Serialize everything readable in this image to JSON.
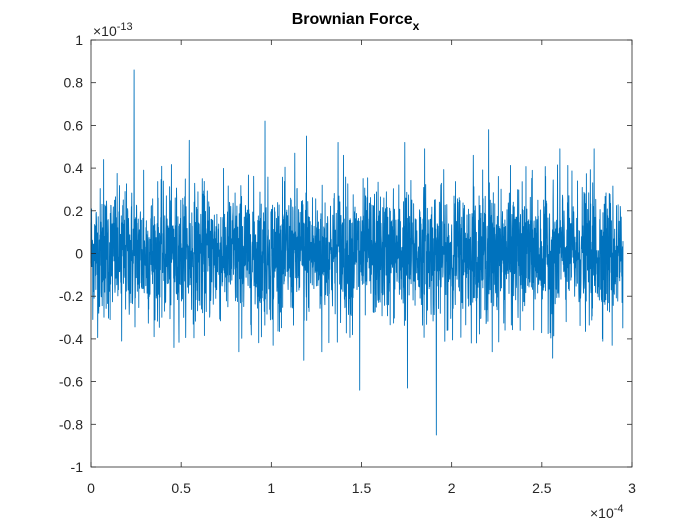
{
  "chart_data": {
    "type": "line",
    "title": "Brownian Force",
    "title_subscript": "x",
    "xlabel": "",
    "ylabel": "",
    "xlim": [
      0,
      0.0003
    ],
    "ylim": [
      -1e-13,
      1e-13
    ],
    "x_exponent_label": "×10",
    "x_exponent": "-4",
    "y_exponent_label": "×10",
    "y_exponent": "-13",
    "x_ticks": [
      0,
      5e-05,
      0.0001,
      0.00015,
      0.0002,
      0.00025,
      0.0003
    ],
    "x_tick_labels": [
      "0",
      "0.5",
      "1",
      "1.5",
      "2",
      "2.5",
      "3"
    ],
    "y_ticks": [
      -1e-13,
      -8e-14,
      -6e-14,
      -4e-14,
      -2e-14,
      0,
      2e-14,
      4e-14,
      6e-14,
      8e-14,
      1e-13
    ],
    "y_tick_labels": [
      "-1",
      "-0.8",
      "-0.6",
      "-0.4",
      "-0.2",
      "0",
      "0.2",
      "0.4",
      "0.6",
      "0.8",
      "1"
    ],
    "grid": false,
    "line_color": "#0072BD",
    "series": [
      {
        "x_start": 0,
        "x_step": 1e-07,
        "num_points": 2951,
        "y_scale": 1e-13,
        "noise_sigma": 0.15,
        "peaks": [
          [
            2.39e-05,
            0.86
          ],
          [
            9.65e-05,
            0.62
          ],
          [
            5.45e-05,
            0.53
          ],
          [
            0.0001195,
            0.55
          ],
          [
            0.000137,
            0.52
          ],
          [
            0.0002205,
            0.58
          ],
          [
            0.000174,
            0.52
          ],
          [
            0.000185,
            0.49
          ],
          [
            0.00026,
            0.49
          ],
          [
            0.00014,
            0.46
          ],
          [
            7e-06,
            0.44
          ],
          [
            1.7e-05,
            0.29
          ],
          [
            2.92e-05,
            0.39
          ],
          [
            0.000113,
            0.47
          ],
          [
            0.000212,
            0.46
          ],
          [
            0.000279,
            0.49
          ],
          [
            0.0001915,
            -0.85
          ],
          [
            0.000149,
            -0.64
          ],
          [
            0.0001755,
            -0.63
          ],
          [
            0.000118,
            -0.5
          ],
          [
            0.000128,
            -0.46
          ],
          [
            8.2e-05,
            -0.46
          ],
          [
            0.000256,
            -0.49
          ],
          [
            4.6e-05,
            -0.44
          ],
          [
            0.000101,
            -0.43
          ],
          [
            0.000289,
            -0.43
          ],
          [
            1.7e-05,
            -0.41
          ],
          [
            0.0002225,
            -0.46
          ],
          [
            9.45e-05,
            -0.39
          ],
          [
            0.000145,
            -0.38
          ],
          [
            0.0001975,
            -0.36
          ],
          [
            0.000238,
            -0.36
          ]
        ]
      }
    ]
  }
}
